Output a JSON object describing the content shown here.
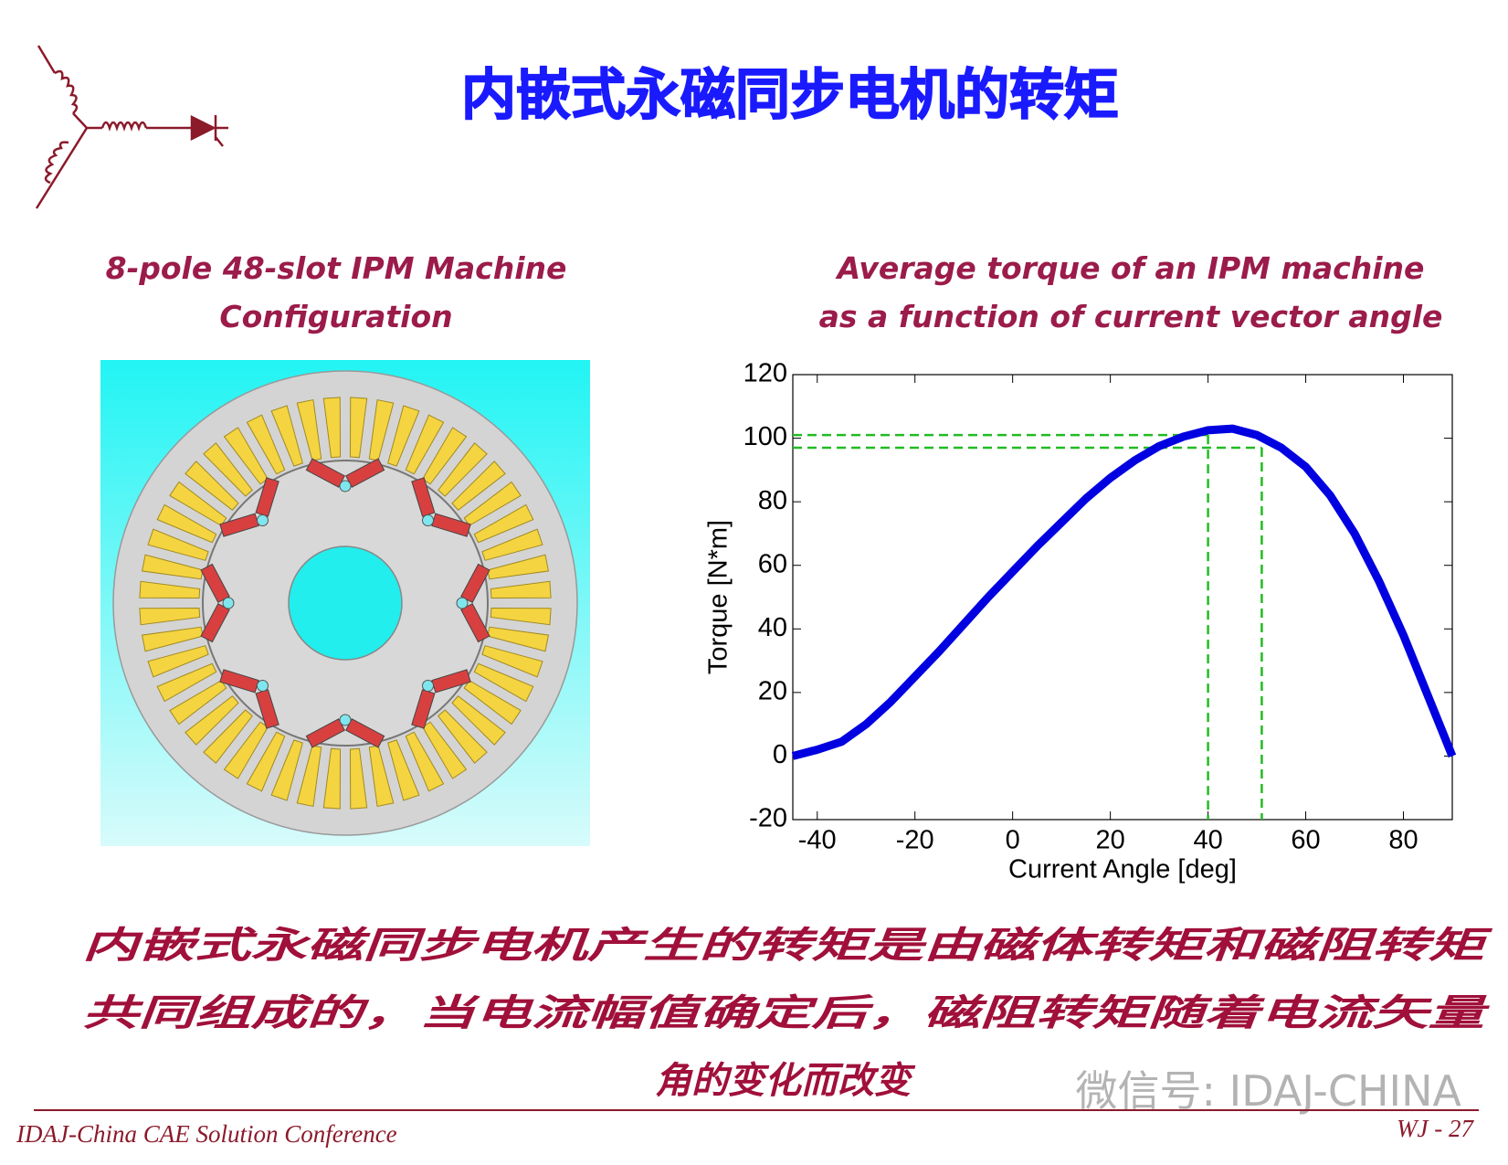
{
  "title": "内嵌式永磁同步电机的转矩",
  "left_panel": {
    "caption": [
      "8-pole 48-slot IPM Machine",
      "Configuration"
    ]
  },
  "chart_data": {
    "type": "line",
    "title": "Average torque of an IPM machine",
    "subtitle": "as a function of current vector angle",
    "xlabel": "Current Angle [deg]",
    "ylabel": "Torque [N*m]",
    "x": [
      -45,
      -40,
      -35,
      -30,
      -25,
      -20,
      -15,
      -10,
      -5,
      0,
      5,
      10,
      15,
      20,
      25,
      30,
      35,
      40,
      45,
      50,
      55,
      60,
      65,
      70,
      75,
      80,
      85,
      90
    ],
    "values": [
      0,
      2,
      4.5,
      10,
      17,
      25,
      33,
      41.5,
      50,
      58,
      66,
      73.5,
      81,
      87.5,
      93,
      97.5,
      100.5,
      102.5,
      103,
      101,
      97,
      91,
      82,
      70,
      55,
      38,
      19,
      0
    ],
    "color": "#0000e0",
    "guides": [
      {
        "x": 40,
        "y": 101
      },
      {
        "x": 51,
        "y": 97
      }
    ],
    "guide_color": "#22bb22",
    "xlim": [
      -45,
      90
    ],
    "ylim": [
      -20,
      120
    ],
    "xticks": [
      -40,
      -20,
      0,
      20,
      40,
      60,
      80
    ],
    "yticks": [
      -20,
      0,
      20,
      40,
      60,
      80,
      100,
      120
    ]
  },
  "body": {
    "lines": [
      "内嵌式永磁同步电机产生的转矩是由磁体转矩和磁阻转矩",
      "共同组成的，当电流幅值确定后，磁阻转矩随着电流矢量",
      "角的变化而改变"
    ]
  },
  "watermark": "微信号: IDAJ-CHINA",
  "footer": {
    "left": "IDAJ-China CAE Solution Conference",
    "right": "WJ - 27"
  }
}
